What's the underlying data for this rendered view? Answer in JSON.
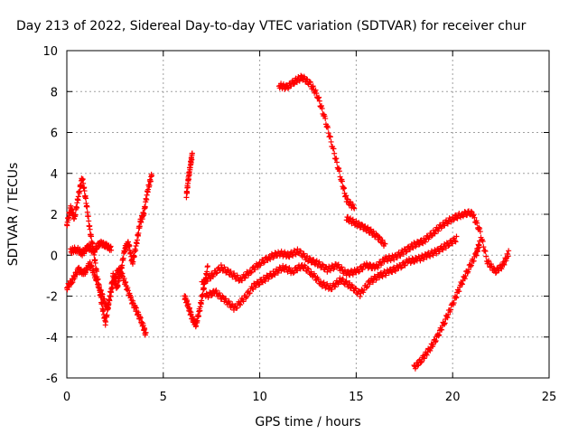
{
  "chart_data": {
    "type": "scatter",
    "title": "Day 213 of 2022, Sidereal Day-to-day VTEC variation (SDTVAR) for receiver chur",
    "xlabel": "GPS time / hours",
    "ylabel": "SDTVAR / TECUs",
    "xlim": [
      0,
      25
    ],
    "ylim": [
      -6,
      10
    ],
    "xticks": [
      0,
      5,
      10,
      15,
      20,
      25
    ],
    "yticks": [
      -6,
      -4,
      -2,
      0,
      2,
      4,
      6,
      8,
      10
    ],
    "grid": true,
    "marker": "+",
    "series": [
      {
        "name": "SDTVAR",
        "color": "#ff0000",
        "segments": [
          {
            "x": [
              0.0,
              0.2,
              0.4,
              0.6,
              0.8,
              1.0,
              1.2,
              1.4,
              1.6,
              1.8,
              2.0,
              2.2,
              2.4,
              2.6,
              2.8,
              3.0,
              3.2,
              3.4,
              3.6,
              3.8,
              4.0,
              4.2,
              4.4
            ],
            "y": [
              1.5,
              2.3,
              1.8,
              2.9,
              3.8,
              2.6,
              1.2,
              0.1,
              -1.2,
              -2.3,
              -3.3,
              -2.2,
              -1.0,
              -1.6,
              -0.8,
              0.3,
              0.6,
              -0.4,
              0.5,
              1.6,
              2.1,
              3.2,
              3.9
            ]
          },
          {
            "x": [
              0.0,
              0.3,
              0.6,
              0.9,
              1.2,
              1.5,
              1.8,
              2.1,
              2.4,
              2.7,
              3.0,
              3.3,
              3.6,
              3.9,
              4.1
            ],
            "y": [
              -1.6,
              -1.2,
              -0.7,
              -0.9,
              -0.4,
              -1.1,
              -1.9,
              -2.6,
              -1.4,
              -0.6,
              -1.3,
              -2.1,
              -2.7,
              -3.3,
              -3.9
            ]
          },
          {
            "x": [
              0.2,
              0.5,
              0.8,
              1.1,
              1.4,
              1.7,
              2.0,
              2.3
            ],
            "y": [
              0.2,
              0.3,
              0.1,
              0.4,
              0.2,
              0.6,
              0.5,
              0.3
            ]
          },
          {
            "x": [
              6.2,
              6.3,
              6.4,
              6.5
            ],
            "y": [
              2.9,
              3.7,
              4.4,
              4.9
            ]
          },
          {
            "x": [
              6.1,
              6.3,
              6.5,
              6.7,
              6.9,
              7.1,
              7.3
            ],
            "y": [
              -2.0,
              -2.5,
              -3.1,
              -3.4,
              -2.6,
              -1.6,
              -0.6
            ]
          },
          {
            "x": [
              7.0,
              7.5,
              8.0,
              8.5,
              9.0,
              9.5,
              10.0,
              10.5,
              11.0,
              11.5,
              12.0,
              12.5,
              13.0,
              13.5,
              14.0,
              14.5,
              15.0,
              15.5,
              16.0,
              16.5,
              17.0,
              17.5,
              18.0,
              18.5,
              19.0,
              19.5,
              20.0,
              20.5,
              21.0,
              21.4,
              21.8,
              22.2,
              22.6,
              22.9
            ],
            "y": [
              -1.4,
              -1.0,
              -0.6,
              -0.9,
              -1.2,
              -0.8,
              -0.4,
              -0.1,
              0.1,
              0.0,
              0.2,
              -0.2,
              -0.4,
              -0.7,
              -0.5,
              -0.9,
              -0.8,
              -0.5,
              -0.6,
              -0.2,
              -0.1,
              0.2,
              0.5,
              0.7,
              1.1,
              1.5,
              1.8,
              2.0,
              2.1,
              1.2,
              -0.3,
              -0.8,
              -0.5,
              0.1
            ]
          },
          {
            "x": [
              7.2,
              7.7,
              8.2,
              8.7,
              9.2,
              9.7,
              10.2,
              10.7,
              11.2,
              11.7,
              12.2,
              12.7,
              13.2,
              13.7,
              14.2,
              14.7,
              15.2,
              15.7,
              16.2,
              16.7,
              17.2,
              17.7,
              18.2,
              18.7,
              19.2,
              19.7,
              20.2
            ],
            "y": [
              -2.0,
              -1.8,
              -2.2,
              -2.6,
              -2.1,
              -1.5,
              -1.2,
              -0.9,
              -0.6,
              -0.8,
              -0.5,
              -0.9,
              -1.4,
              -1.6,
              -1.2,
              -1.5,
              -1.9,
              -1.3,
              -1.0,
              -0.8,
              -0.6,
              -0.3,
              -0.2,
              0.0,
              0.2,
              0.5,
              0.8
            ]
          },
          {
            "x": [
              11.0,
              11.4,
              11.8,
              12.2,
              12.6,
              13.0,
              13.4,
              13.8,
              14.2,
              14.5,
              14.9
            ],
            "y": [
              8.3,
              8.2,
              8.5,
              8.7,
              8.4,
              7.8,
              6.6,
              5.2,
              3.8,
              2.7,
              2.3
            ]
          },
          {
            "x": [
              14.5,
              14.9,
              15.3,
              15.7,
              16.1,
              16.5
            ],
            "y": [
              1.8,
              1.6,
              1.4,
              1.2,
              0.9,
              0.5
            ]
          },
          {
            "x": [
              18.0,
              18.4,
              18.8,
              19.2,
              19.6,
              20.0,
              20.4,
              20.8,
              21.2,
              21.4
            ],
            "y": [
              -5.5,
              -5.1,
              -4.6,
              -4.0,
              -3.2,
              -2.4,
              -1.5,
              -0.7,
              0.0,
              0.6
            ]
          }
        ]
      }
    ]
  }
}
